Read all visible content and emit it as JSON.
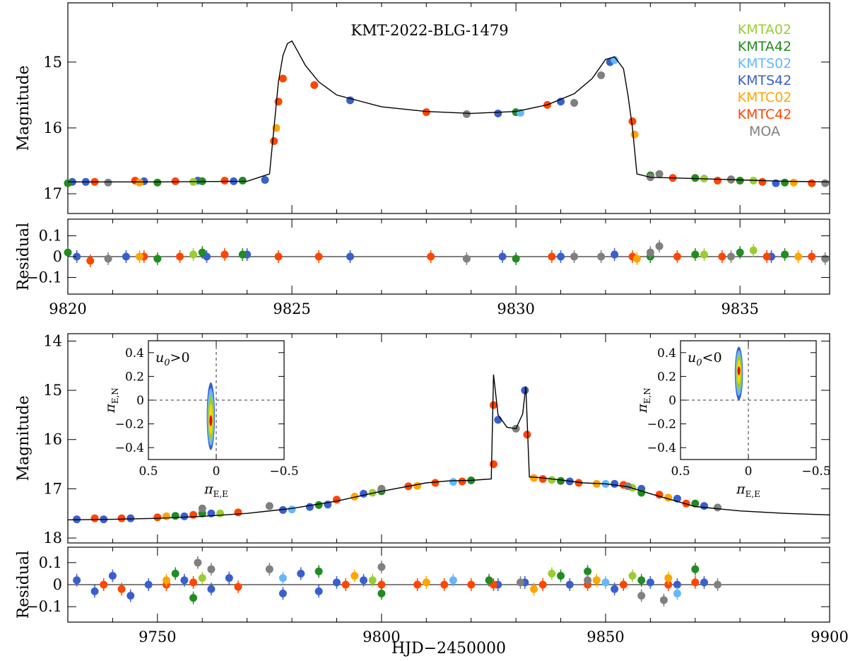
{
  "chart_data": [
    {
      "type": "scatter",
      "panel": "top-light-curve",
      "title": "KMT-2022-BLG-1479",
      "xlabel": "",
      "ylabel": "Magnitude",
      "xlim": [
        9820,
        9837
      ],
      "ylim": [
        17.3,
        14.1
      ],
      "yticks": [
        15,
        16,
        17
      ],
      "legend": {
        "placement": "top-right",
        "entries": [
          {
            "name": "KMTA02",
            "color": "#9acd32"
          },
          {
            "name": "KMTA42",
            "color": "#228b22"
          },
          {
            "name": "KMTS02",
            "color": "#63b8ff"
          },
          {
            "name": "KMTS42",
            "color": "#3a5fcd"
          },
          {
            "name": "KMTC02",
            "color": "#ffa500"
          },
          {
            "name": "KMTC42",
            "color": "#ff4500"
          },
          {
            "name": "MOA",
            "color": "#808080"
          }
        ]
      },
      "model_curve": {
        "x": [
          9820,
          9822,
          9824,
          9824.5,
          9824.6,
          9824.7,
          9824.8,
          9824.9,
          9825.0,
          9825.1,
          9825.3,
          9825.6,
          9826,
          9827,
          9828,
          9829,
          9830,
          9830.7,
          9831.3,
          9831.7,
          9832.0,
          9832.2,
          9832.4,
          9832.5,
          9832.6,
          9832.7,
          9833,
          9834,
          9835,
          9836,
          9837
        ],
        "y": [
          16.82,
          16.82,
          16.81,
          16.7,
          16.0,
          15.3,
          14.9,
          14.72,
          14.68,
          14.8,
          15.05,
          15.3,
          15.5,
          15.68,
          15.75,
          15.78,
          15.75,
          15.65,
          15.48,
          15.25,
          14.96,
          14.92,
          15.1,
          15.5,
          16.0,
          16.7,
          16.75,
          16.77,
          16.79,
          16.81,
          16.82
        ]
      },
      "data_groups": [
        {
          "dataset": "KMTS42",
          "x": [
            9820.1,
            9820.4,
            9821.7,
            9822.9,
            9823.7,
            9824.4,
            9826.3,
            9829.6,
            9831.0,
            9832.1,
            9835.8
          ],
          "y": [
            16.82,
            16.82,
            16.81,
            16.8,
            16.81,
            16.79,
            15.58,
            15.78,
            15.6,
            15.0,
            16.84
          ]
        },
        {
          "dataset": "KMTC42",
          "x": [
            9820.6,
            9821.5,
            9822.4,
            9823.5,
            9824.6,
            9824.7,
            9824.8,
            9825.5,
            9828.0,
            9830.7,
            9832.6,
            9833.5,
            9834.5,
            9835.5,
            9836.6
          ],
          "y": [
            16.82,
            16.8,
            16.81,
            16.8,
            16.2,
            15.6,
            15.25,
            15.35,
            15.76,
            15.65,
            15.9,
            16.76,
            16.8,
            16.82,
            16.84
          ]
        },
        {
          "dataset": "KMTC02",
          "x": [
            9821.6,
            9824.65,
            9832.65,
            9834.8,
            9836.2
          ],
          "y": [
            16.83,
            16.0,
            16.1,
            16.79,
            16.83
          ]
        },
        {
          "dataset": "KMTA42",
          "x": [
            9820.0,
            9822.0,
            9823.0,
            9823.9,
            9830.0,
            9833.0,
            9834.0,
            9835.0,
            9836.0
          ],
          "y": [
            16.84,
            16.83,
            16.81,
            16.8,
            15.76,
            16.72,
            16.76,
            16.8,
            16.83
          ]
        },
        {
          "dataset": "KMTA02",
          "x": [
            9822.8,
            9834.2,
            9835.3
          ],
          "y": [
            16.82,
            16.77,
            16.8
          ]
        },
        {
          "dataset": "KMTS02",
          "x": [
            9830.1,
            9832.2
          ],
          "y": [
            15.77,
            14.97
          ]
        },
        {
          "dataset": "MOA",
          "x": [
            9820.9,
            9828.9,
            9831.3,
            9831.9,
            9833.0,
            9833.2,
            9834.8,
            9836.9
          ],
          "y": [
            16.83,
            15.79,
            15.62,
            15.2,
            16.75,
            16.7,
            16.78,
            16.84
          ]
        }
      ]
    },
    {
      "type": "scatter",
      "panel": "top-residual",
      "xlabel": "",
      "ylabel": "Residual",
      "xlim": [
        9820,
        9837
      ],
      "ylim": [
        -0.18,
        0.18
      ],
      "yticks": [
        -0.1,
        0,
        0.1
      ],
      "xticks": [
        9820,
        9825,
        9830,
        9835
      ],
      "data_groups": [
        {
          "dataset": "KMTS42",
          "x": [
            9820.2,
            9821.3,
            9823.1,
            9824.0,
            9826.3,
            9829.7,
            9831.0,
            9832.2,
            9835.7
          ],
          "y": [
            0.0,
            0.0,
            0.0,
            0.01,
            0.0,
            0.0,
            0.0,
            0.01,
            0.0
          ]
        },
        {
          "dataset": "KMTC42",
          "x": [
            9820.5,
            9821.7,
            9822.5,
            9823.5,
            9824.7,
            9825.6,
            9828.1,
            9830.8,
            9832.6,
            9833.6,
            9834.6,
            9835.6,
            9836.6
          ],
          "y": [
            -0.02,
            0.0,
            0.0,
            0.01,
            0.0,
            0.0,
            0.0,
            0.0,
            0.0,
            0.0,
            0.0,
            0.0,
            0.0
          ]
        },
        {
          "dataset": "KMTA42",
          "x": [
            9820.0,
            9822.0,
            9823.0,
            9823.9,
            9830.0,
            9833.0,
            9834.0,
            9835.0,
            9836.0
          ],
          "y": [
            0.02,
            -0.01,
            0.02,
            0.01,
            -0.01,
            0.0,
            0.01,
            0.02,
            0.01
          ]
        },
        {
          "dataset": "KMTA02",
          "x": [
            9822.8,
            9834.2,
            9835.3
          ],
          "y": [
            0.01,
            0.01,
            0.03
          ]
        },
        {
          "dataset": "KMTC02",
          "x": [
            9821.6,
            9832.7,
            9836.3
          ],
          "y": [
            0.0,
            -0.01,
            0.0
          ]
        },
        {
          "dataset": "MOA",
          "x": [
            9820.9,
            9828.9,
            9831.3,
            9831.9,
            9833.0,
            9833.2,
            9834.8,
            9836.9
          ],
          "y": [
            -0.01,
            -0.01,
            0.0,
            0.0,
            0.02,
            0.05,
            0.0,
            -0.01
          ]
        }
      ]
    },
    {
      "type": "scatter",
      "panel": "bottom-light-curve",
      "xlabel": "",
      "ylabel": "Magnitude",
      "xlim": [
        9730,
        9900
      ],
      "ylim": [
        18.1,
        13.85
      ],
      "yticks": [
        14,
        15,
        16,
        17,
        18
      ],
      "model_curve": {
        "x": [
          9730,
          9740,
          9750,
          9760,
          9770,
          9780,
          9790,
          9800,
          9810,
          9815,
          9820,
          9824.5,
          9825,
          9826,
          9828,
          9830,
          9831.5,
          9832.2,
          9833,
          9835,
          9840,
          9845,
          9850,
          9855,
          9860,
          9870,
          9880,
          9890,
          9900
        ],
        "y": [
          17.63,
          17.62,
          17.6,
          17.56,
          17.5,
          17.4,
          17.25,
          17.05,
          16.88,
          16.84,
          16.83,
          16.8,
          14.68,
          15.5,
          15.75,
          15.78,
          15.48,
          14.92,
          16.76,
          16.77,
          16.82,
          16.88,
          16.9,
          16.96,
          17.1,
          17.36,
          17.45,
          17.5,
          17.53
        ]
      },
      "data_groups": [
        {
          "dataset": "KMTS42",
          "x": [
            9732,
            9738,
            9744,
            9756,
            9762,
            9778,
            9784,
            9788,
            9796,
            9826,
            9832,
            9842,
            9852,
            9858,
            9866,
            9872
          ],
          "y": [
            17.62,
            17.62,
            17.6,
            17.56,
            17.5,
            17.43,
            17.37,
            17.32,
            17.1,
            15.6,
            15.0,
            16.85,
            16.9,
            17.0,
            17.2,
            17.35
          ]
        },
        {
          "dataset": "KMTC42",
          "x": [
            9736,
            9742,
            9750,
            9758,
            9768,
            9790,
            9800,
            9806,
            9812,
            9818,
            9825,
            9825,
            9832.5,
            9836,
            9844,
            9854,
            9862,
            9868
          ],
          "y": [
            17.6,
            17.6,
            17.58,
            17.53,
            17.48,
            17.22,
            17.02,
            16.95,
            16.88,
            16.85,
            15.3,
            16.5,
            15.9,
            16.8,
            16.88,
            16.92,
            17.12,
            17.3
          ]
        },
        {
          "dataset": "KMTA42",
          "x": [
            9754,
            9760,
            9786,
            9800,
            9820,
            9840,
            9858,
            9870
          ],
          "y": [
            17.55,
            17.5,
            17.33,
            17.05,
            16.83,
            16.84,
            17.08,
            17.3
          ]
        },
        {
          "dataset": "KMTC02",
          "x": [
            9752,
            9794,
            9808,
            9834,
            9848,
            9864
          ],
          "y": [
            17.56,
            17.16,
            16.94,
            16.78,
            16.9,
            17.18
          ]
        },
        {
          "dataset": "KMTA02",
          "x": [
            9764,
            9798,
            9838,
            9856
          ],
          "y": [
            17.5,
            17.08,
            16.82,
            16.98
          ]
        },
        {
          "dataset": "KMTS02",
          "x": [
            9780,
            9816,
            9850
          ],
          "y": [
            17.42,
            16.86,
            16.9
          ]
        },
        {
          "dataset": "MOA",
          "x": [
            9760,
            9775,
            9800,
            9830,
            9855,
            9875
          ],
          "y": [
            17.4,
            17.35,
            17.0,
            15.78,
            16.95,
            17.38
          ]
        }
      ]
    },
    {
      "type": "scatter",
      "panel": "bottom-residual",
      "xlabel": "HJD−2450000",
      "ylabel": "Residual",
      "xlim": [
        9730,
        9900
      ],
      "ylim": [
        -0.17,
        0.17
      ],
      "yticks": [
        -0.1,
        0,
        0.1
      ],
      "xticks": [
        9750,
        9800,
        9850,
        9900
      ],
      "data_groups": [
        {
          "dataset": "KMTS42",
          "x": [
            9732,
            9736,
            9740,
            9744,
            9748,
            9756,
            9762,
            9766,
            9778,
            9782,
            9786,
            9790,
            9796,
            9826,
            9832,
            9842,
            9852,
            9860,
            9866,
            9872
          ],
          "y": [
            0.02,
            -0.03,
            0.04,
            -0.05,
            0.0,
            0.02,
            -0.02,
            0.03,
            -0.04,
            0.05,
            -0.03,
            0.01,
            0.02,
            0.0,
            0.01,
            0.0,
            -0.02,
            0.01,
            0.0,
            0.01
          ]
        },
        {
          "dataset": "KMTC42",
          "x": [
            9738,
            9742,
            9752,
            9758,
            9768,
            9792,
            9800,
            9808,
            9814,
            9820,
            9825,
            9836,
            9846,
            9854,
            9864,
            9870
          ],
          "y": [
            0.0,
            -0.02,
            0.0,
            0.01,
            -0.01,
            0.0,
            0.0,
            0.0,
            0.0,
            0.0,
            0.0,
            0.0,
            0.0,
            0.0,
            0.0,
            0.01
          ]
        },
        {
          "dataset": "KMTA42",
          "x": [
            9754,
            9758,
            9786,
            9800,
            9824,
            9840,
            9846,
            9858,
            9870
          ],
          "y": [
            0.05,
            -0.06,
            0.06,
            -0.04,
            0.02,
            0.04,
            0.06,
            0.02,
            0.07
          ]
        },
        {
          "dataset": "KMTC02",
          "x": [
            9752,
            9794,
            9810,
            9834,
            9848,
            9864
          ],
          "y": [
            0.02,
            0.04,
            0.01,
            -0.02,
            0.02,
            0.03
          ]
        },
        {
          "dataset": "KMTA02",
          "x": [
            9760,
            9798,
            9838,
            9856
          ],
          "y": [
            0.03,
            0.02,
            0.05,
            0.04
          ]
        },
        {
          "dataset": "KMTS02",
          "x": [
            9778,
            9816,
            9850,
            9866
          ],
          "y": [
            0.03,
            0.02,
            0.01,
            -0.04
          ]
        },
        {
          "dataset": "MOA",
          "x": [
            9759,
            9762,
            9775,
            9800,
            9831,
            9846,
            9858,
            9863,
            9875
          ],
          "y": [
            0.1,
            0.07,
            0.07,
            0.08,
            0.01,
            0.02,
            -0.05,
            -0.07,
            0.0
          ]
        }
      ]
    },
    {
      "type": "scatter",
      "panel": "inset-left",
      "title": "u₀>0",
      "title_parts": {
        "symbol": "u",
        "subscript": "0",
        "relation": ">0"
      },
      "xlabel": "πE,E",
      "ylabel": "πE,N",
      "label_parts": {
        "symbol": "π",
        "x_subscript": "E,E",
        "y_subscript": "E,N"
      },
      "xlim": [
        0.5,
        -0.5
      ],
      "ylim": [
        -0.5,
        0.5
      ],
      "xticks": [
        0.5,
        0,
        -0.5
      ],
      "yticks": [
        -0.4,
        -0.2,
        0,
        0.2,
        0.4
      ],
      "yticklabels": [
        "−0.4",
        "−0.2",
        "0",
        "0.2",
        "0.4"
      ],
      "xticklabels": [
        "0.5",
        "0",
        "−0.5"
      ],
      "posterior": {
        "center": [
          0.04,
          -0.18
        ],
        "span_x": [
          0.01,
          0.07
        ],
        "span_y": [
          -0.42,
          0.15
        ]
      },
      "levels": [
        {
          "name": "4σ",
          "color": "#3a5fcd"
        },
        {
          "name": "3σ",
          "color": "#63b8ff"
        },
        {
          "name": "2σ",
          "color": "#9acd32"
        },
        {
          "name": "1σ",
          "color": "#ffd700"
        },
        {
          "name": "best",
          "color": "#ff0000"
        }
      ]
    },
    {
      "type": "scatter",
      "panel": "inset-right",
      "title": "u₀<0",
      "title_parts": {
        "symbol": "u",
        "subscript": "0",
        "relation": "<0"
      },
      "xlabel": "πE,E",
      "ylabel": "πE,N",
      "label_parts": {
        "symbol": "π",
        "x_subscript": "E,E",
        "y_subscript": "E,N"
      },
      "xlim": [
        0.5,
        -0.5
      ],
      "ylim": [
        -0.5,
        0.5
      ],
      "xticks": [
        0.5,
        0,
        -0.5
      ],
      "yticks": [
        -0.4,
        -0.2,
        0,
        0.2,
        0.4
      ],
      "yticklabels": [
        "−0.4",
        "−0.2",
        "0",
        "0.2",
        "0.4"
      ],
      "xticklabels": [
        "0.5",
        "0",
        "−0.5"
      ],
      "posterior": {
        "center": [
          0.07,
          0.25
        ],
        "span_x": [
          0.04,
          0.1
        ],
        "span_y": [
          0.0,
          0.45
        ]
      },
      "levels": [
        {
          "name": "4σ",
          "color": "#3a5fcd"
        },
        {
          "name": "3σ",
          "color": "#63b8ff"
        },
        {
          "name": "2σ",
          "color": "#9acd32"
        },
        {
          "name": "1σ",
          "color": "#ffd700"
        },
        {
          "name": "best",
          "color": "#ff0000"
        }
      ]
    }
  ]
}
